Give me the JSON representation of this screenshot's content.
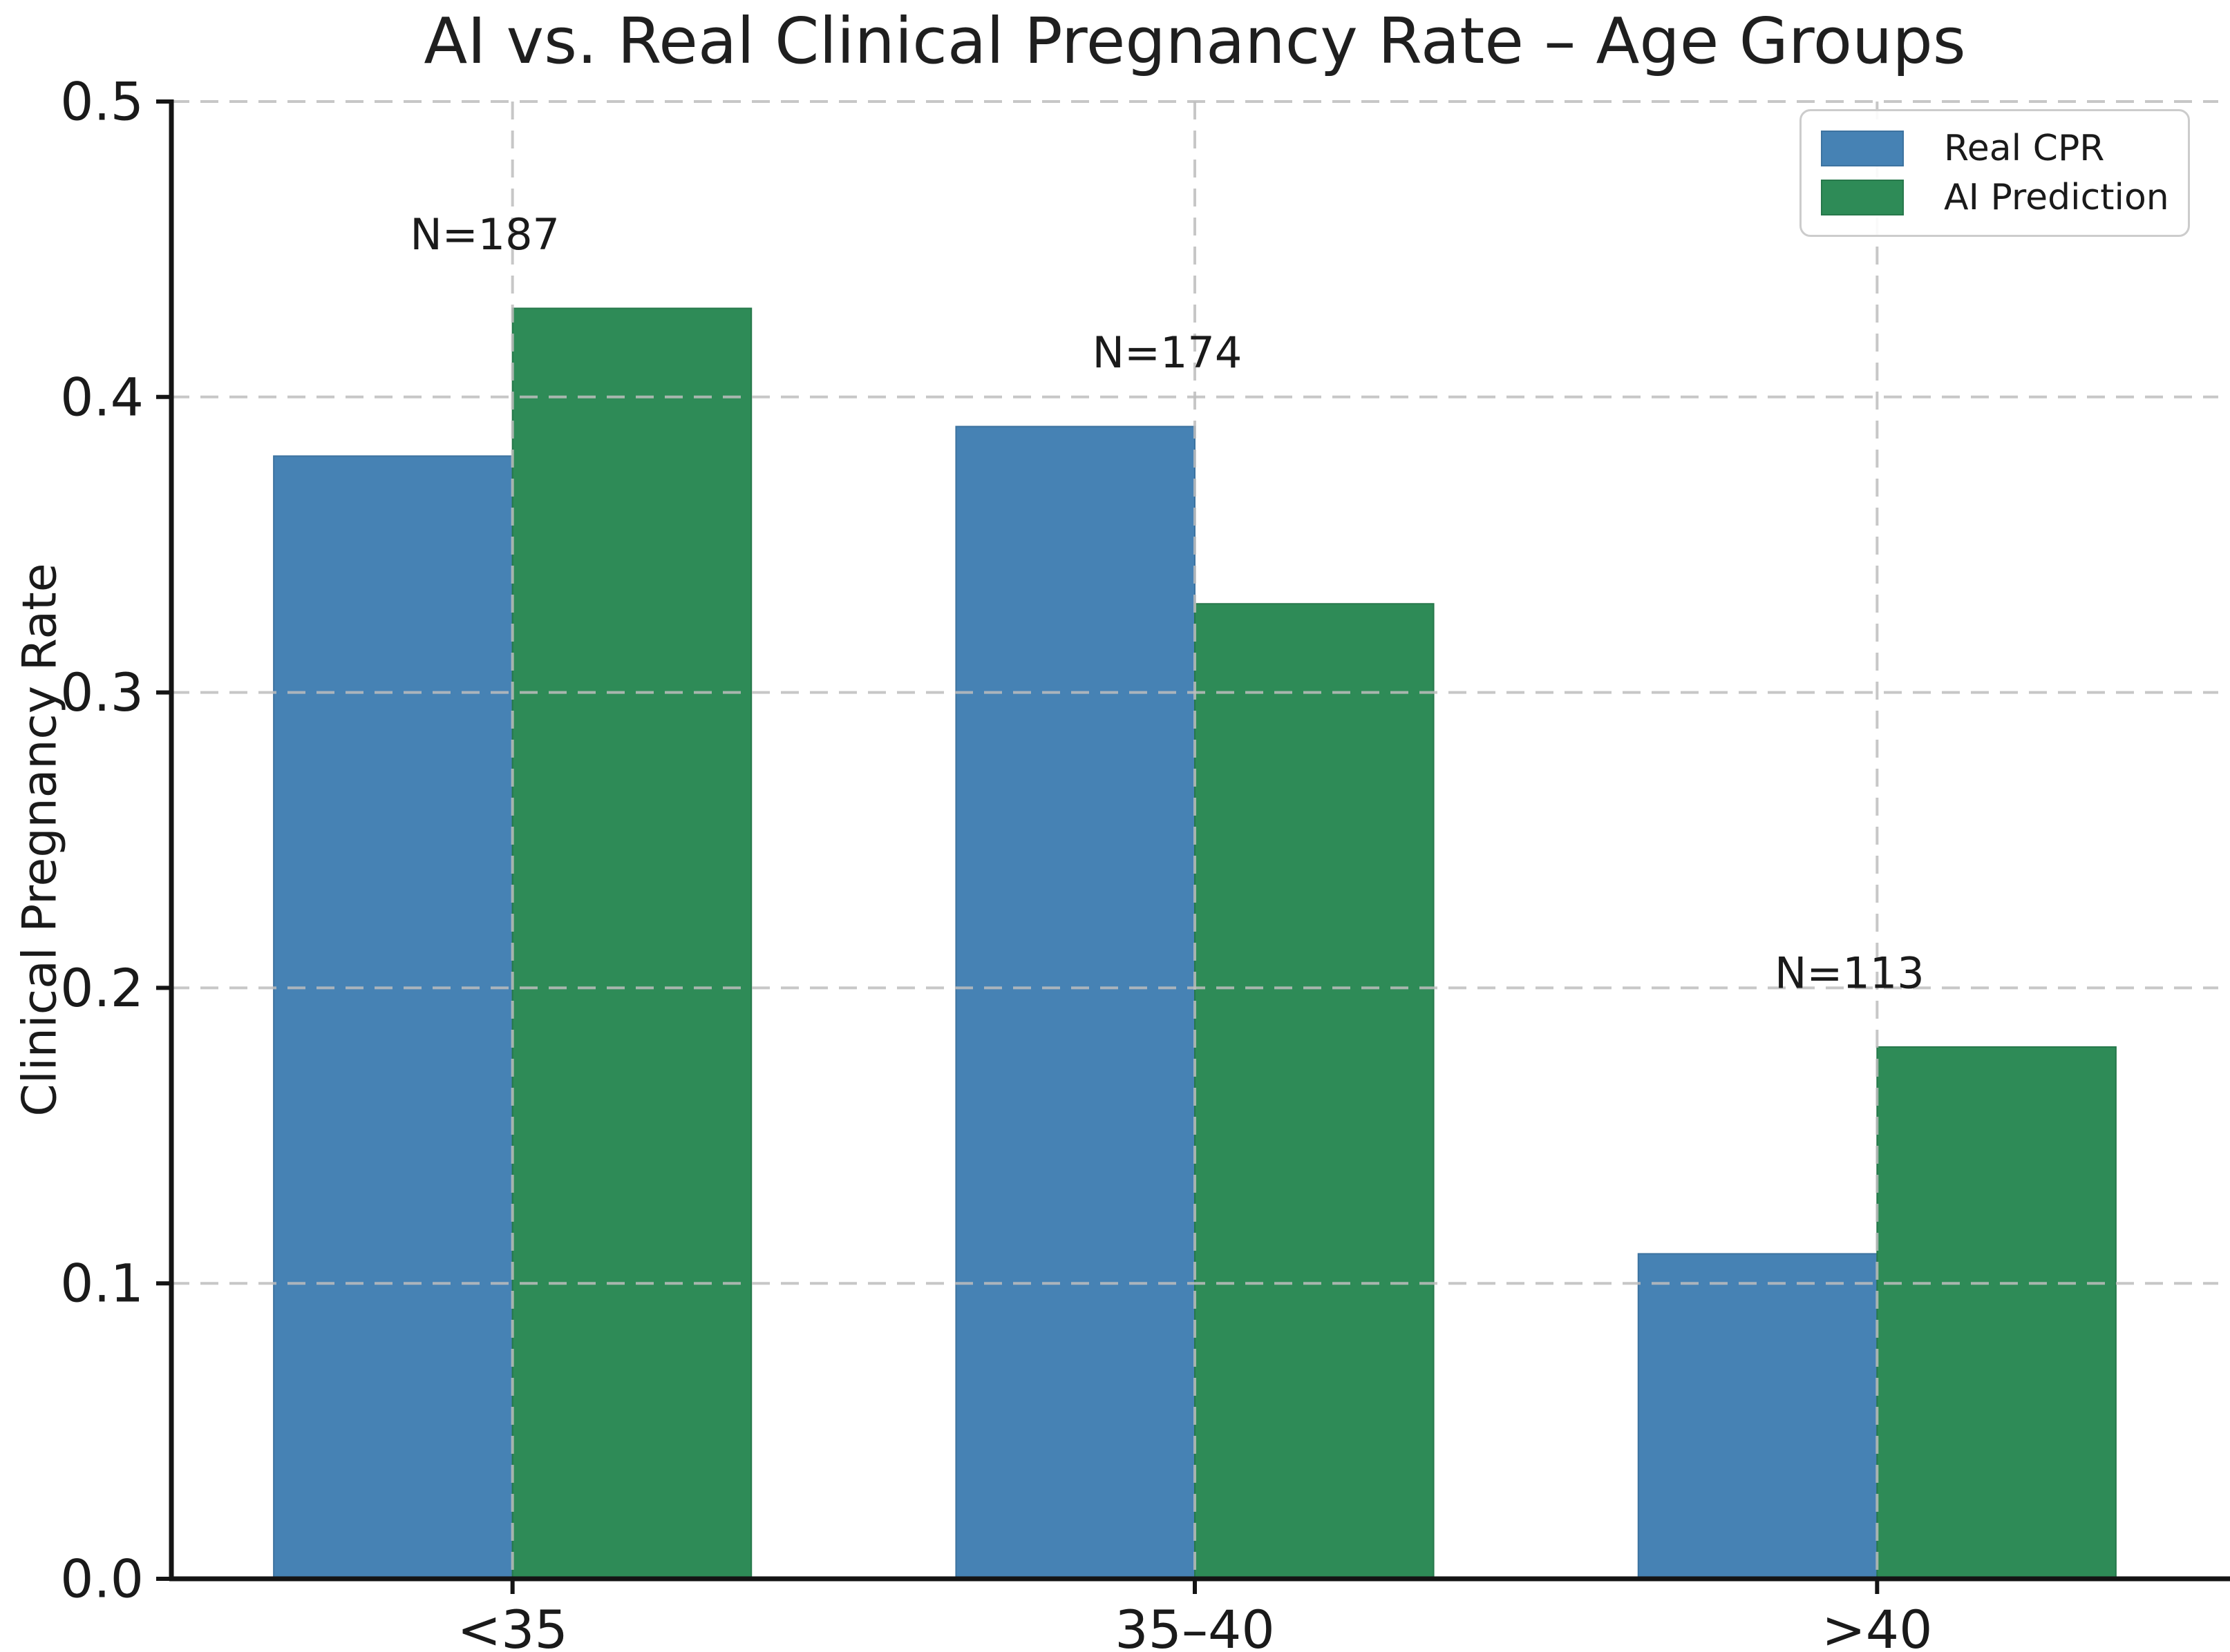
{
  "chart_data": {
    "type": "bar",
    "title": "AI vs. Real Clinical Pregnancy Rate – Age Groups",
    "xlabel": "",
    "ylabel": "Clinical Pregnancy Rate",
    "categories": [
      "<35",
      "35–40",
      ">40"
    ],
    "series": [
      {
        "name": "Real CPR",
        "color": "#4682b4",
        "edge_color": "#3d73a0",
        "values": [
          0.38,
          0.39,
          0.11
        ]
      },
      {
        "name": "AI Prediction",
        "color": "#2e8b57",
        "edge_color": "#27784b",
        "values": [
          0.43,
          0.33,
          0.18
        ]
      }
    ],
    "annotations": [
      {
        "label": "N=187",
        "category": "<35"
      },
      {
        "label": "N=174",
        "category": "35–40"
      },
      {
        "label": "N=113",
        "category": ">40"
      }
    ],
    "ylim": [
      0.0,
      0.5
    ],
    "yticks": [
      "0.0",
      "0.1",
      "0.2",
      "0.3",
      "0.4",
      "0.5"
    ],
    "grid": true,
    "grid_style": "dashed",
    "grid_color": "#bdbdbd",
    "legend_position": "upper right",
    "bar_width_fraction": 0.35
  }
}
